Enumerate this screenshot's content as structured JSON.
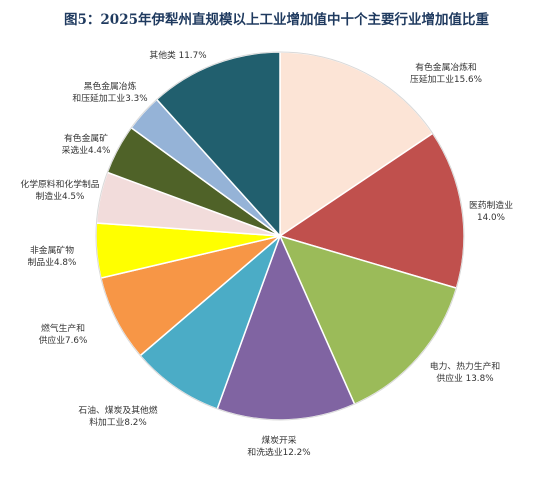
{
  "chart_data": {
    "type": "pie",
    "title": "图5：2025年伊犁州直规模以上工业增加值中十个主要行业增加值比重",
    "slices": [
      {
        "lines": [
          "有色金属冶炼和",
          "压延加工业15.6%"
        ],
        "value": 15.6,
        "color": "#fce4d6"
      },
      {
        "lines": [
          "医药制造业",
          "14.0%"
        ],
        "value": 14.0,
        "color": "#c0504d"
      },
      {
        "lines": [
          "电力、热力生产和",
          "供应业 13.8%"
        ],
        "value": 13.8,
        "color": "#9bbb59"
      },
      {
        "lines": [
          "煤炭开采",
          "和洗选业12.2%"
        ],
        "value": 12.2,
        "color": "#8064a2"
      },
      {
        "lines": [
          "石油、煤炭及其他燃",
          "料加工业8.2%"
        ],
        "value": 8.2,
        "color": "#4bacc6"
      },
      {
        "lines": [
          "燃气生产和",
          "供应业7.6%"
        ],
        "value": 7.6,
        "color": "#f79646"
      },
      {
        "lines": [
          "非金属矿物",
          "制品业4.8%"
        ],
        "value": 4.8,
        "color": "#ffff00"
      },
      {
        "lines": [
          "化学原料和化学制品",
          "制造业4.5%"
        ],
        "value": 4.5,
        "color": "#f2dcdb"
      },
      {
        "lines": [
          "有色金属矿",
          "采选业4.4%"
        ],
        "value": 4.4,
        "color": "#4f6228"
      },
      {
        "lines": [
          "黑色金属冶炼",
          "和压延加工业3.3%"
        ],
        "value": 3.3,
        "color": "#95b3d7"
      },
      {
        "lines": [
          "其他类  11.7%"
        ],
        "value": 11.7,
        "color": "#215f6e"
      }
    ]
  }
}
